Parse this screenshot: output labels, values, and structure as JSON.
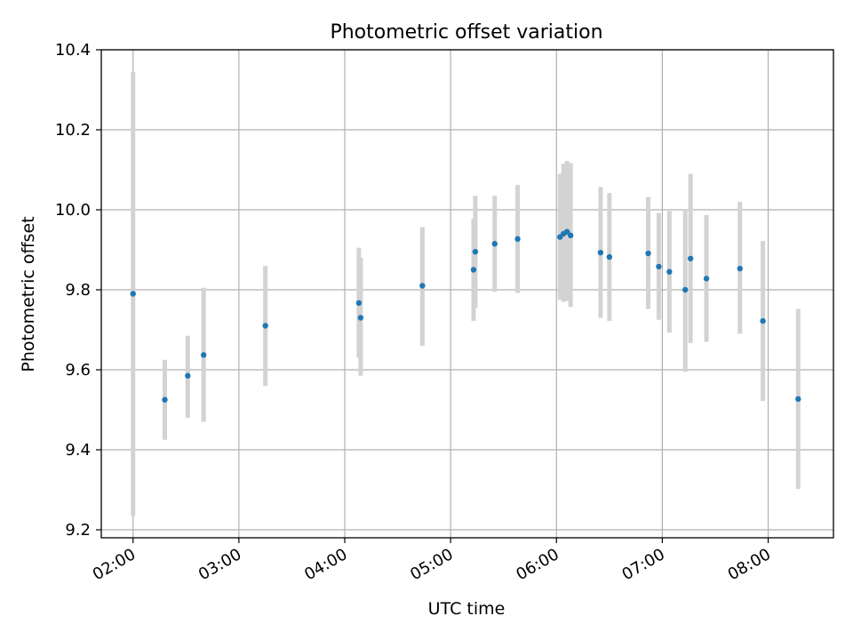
{
  "chart_data": {
    "type": "scatter",
    "title": "Photometric offset variation",
    "xlabel": "UTC time",
    "ylabel": "Photometric offset",
    "x_tick_labels": [
      "02:00",
      "03:00",
      "04:00",
      "05:00",
      "06:00",
      "07:00",
      "08:00"
    ],
    "y_tick_labels": [
      "9.2",
      "9.4",
      "9.6",
      "9.8",
      "10.0",
      "10.2",
      "10.4"
    ],
    "xlim": [
      "01:42",
      "08:37"
    ],
    "ylim": [
      9.18,
      10.4
    ],
    "grid": true,
    "error_bar_color": "#d3d3d3",
    "marker_color": "#1f77b4",
    "points": [
      {
        "x": "02:00",
        "y": 9.79,
        "lo": 9.235,
        "hi": 10.345
      },
      {
        "x": "02:18",
        "y": 9.525,
        "lo": 9.425,
        "hi": 9.625
      },
      {
        "x": "02:31",
        "y": 9.585,
        "lo": 9.48,
        "hi": 9.685
      },
      {
        "x": "02:40",
        "y": 9.637,
        "lo": 9.47,
        "hi": 9.805
      },
      {
        "x": "03:15",
        "y": 9.71,
        "lo": 9.56,
        "hi": 9.86
      },
      {
        "x": "04:08",
        "y": 9.767,
        "lo": 9.63,
        "hi": 9.905
      },
      {
        "x": "04:09",
        "y": 9.73,
        "lo": 9.585,
        "hi": 9.88
      },
      {
        "x": "04:44",
        "y": 9.81,
        "lo": 9.66,
        "hi": 9.957
      },
      {
        "x": "05:13",
        "y": 9.85,
        "lo": 9.722,
        "hi": 9.977
      },
      {
        "x": "05:14",
        "y": 9.895,
        "lo": 9.755,
        "hi": 10.035
      },
      {
        "x": "05:25",
        "y": 9.915,
        "lo": 9.795,
        "hi": 10.035
      },
      {
        "x": "05:38",
        "y": 9.927,
        "lo": 9.792,
        "hi": 10.062
      },
      {
        "x": "06:02",
        "y": 9.932,
        "lo": 9.775,
        "hi": 10.09
      },
      {
        "x": "06:04",
        "y": 9.94,
        "lo": 9.77,
        "hi": 10.115
      },
      {
        "x": "06:06",
        "y": 9.945,
        "lo": 9.772,
        "hi": 10.122
      },
      {
        "x": "06:08",
        "y": 9.936,
        "lo": 9.757,
        "hi": 10.117
      },
      {
        "x": "06:25",
        "y": 9.893,
        "lo": 9.73,
        "hi": 10.057
      },
      {
        "x": "06:30",
        "y": 9.882,
        "lo": 9.722,
        "hi": 10.042
      },
      {
        "x": "06:52",
        "y": 9.891,
        "lo": 9.752,
        "hi": 10.032
      },
      {
        "x": "06:58",
        "y": 9.858,
        "lo": 9.725,
        "hi": 9.992
      },
      {
        "x": "07:04",
        "y": 9.845,
        "lo": 9.693,
        "hi": 9.997
      },
      {
        "x": "07:13",
        "y": 9.8,
        "lo": 9.595,
        "hi": 10.002
      },
      {
        "x": "07:16",
        "y": 9.878,
        "lo": 9.667,
        "hi": 10.09
      },
      {
        "x": "07:25",
        "y": 9.828,
        "lo": 9.67,
        "hi": 9.987
      },
      {
        "x": "07:44",
        "y": 9.853,
        "lo": 9.69,
        "hi": 10.02
      },
      {
        "x": "07:57",
        "y": 9.722,
        "lo": 9.522,
        "hi": 9.922
      },
      {
        "x": "08:17",
        "y": 9.527,
        "lo": 9.302,
        "hi": 9.752
      }
    ]
  }
}
